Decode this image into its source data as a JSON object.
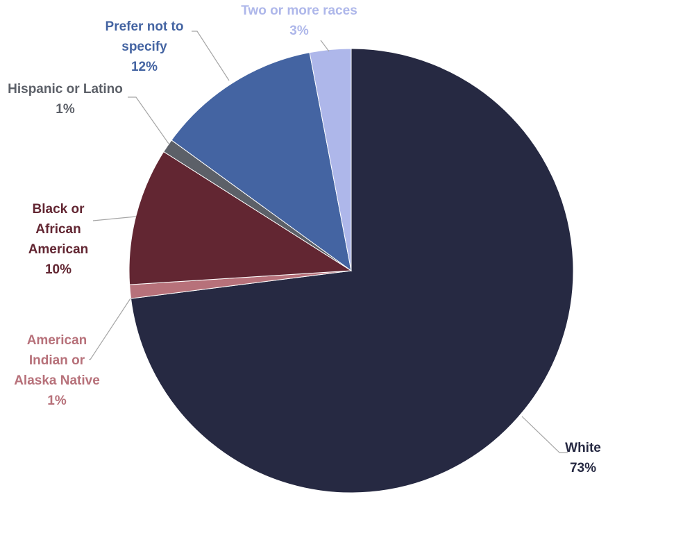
{
  "chart_data": {
    "type": "pie",
    "title": "",
    "start_angle_deg": 0,
    "direction": "clockwise",
    "slices": [
      {
        "label": [
          "White"
        ],
        "value": 73,
        "value_label": "73%",
        "color": "#262942",
        "label_color": "#262942"
      },
      {
        "label": [
          "American",
          "Indian or",
          "Alaska Native"
        ],
        "value": 1,
        "value_label": "1%",
        "color": "#B7717A",
        "label_color": "#B7717A"
      },
      {
        "label": [
          "Black or",
          "African",
          "American"
        ],
        "value": 10,
        "value_label": "10%",
        "color": "#622632",
        "label_color": "#622632"
      },
      {
        "label": [
          "Hispanic or Latino"
        ],
        "value": 1,
        "value_label": "1%",
        "color": "#5C6068",
        "label_color": "#5C6068"
      },
      {
        "label": [
          "Prefer not to",
          "specify"
        ],
        "value": 12,
        "value_label": "12%",
        "color": "#4464A2",
        "label_color": "#4464A2"
      },
      {
        "label": [
          "Two or more races"
        ],
        "value": 3,
        "value_label": "3%",
        "color": "#AEB7EA",
        "label_color": "#AEB7EA"
      }
    ],
    "legend": "none",
    "data_labels": "outside-with-leader-lines"
  }
}
